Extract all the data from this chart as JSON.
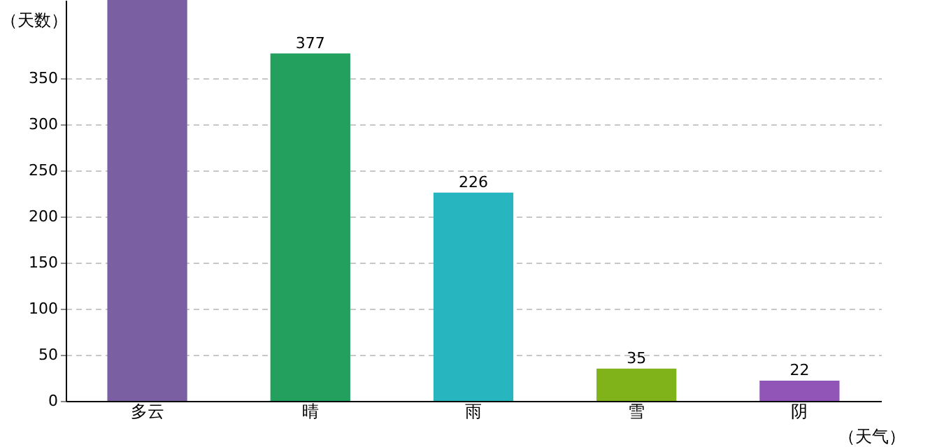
{
  "chart_data": {
    "type": "bar",
    "xlabel": "（天气）",
    "ylabel": "（天数）",
    "categories": [
      "多云",
      "晴",
      "雨",
      "雪",
      "阴"
    ],
    "values": [
      435,
      377,
      226,
      35,
      22
    ],
    "value_labels": [
      null,
      "377",
      "226",
      "35",
      "22"
    ],
    "colors": [
      "#7a5fa3",
      "#239f5e",
      "#27b5bf",
      "#80b31a",
      "#9155b8"
    ],
    "ylim": [
      0,
      435
    ],
    "yticks": [
      0,
      50,
      100,
      150,
      200,
      250,
      300,
      350
    ],
    "grid": "y"
  }
}
